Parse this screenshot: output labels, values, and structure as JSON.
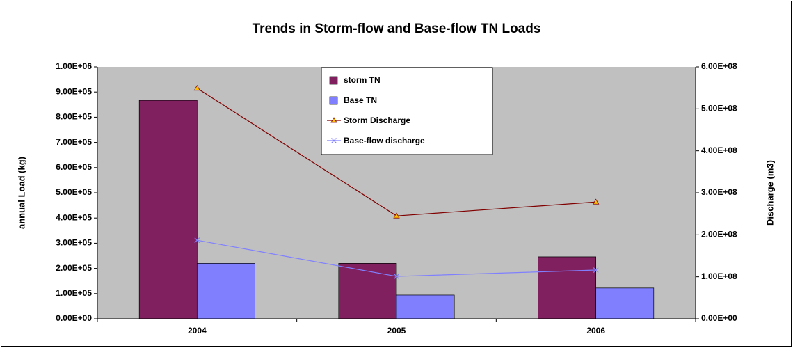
{
  "chart_data": {
    "type": "bar-line",
    "title": "Trends in Storm-flow and Base-flow TN Loads",
    "ylabel": "annual Load (kg)",
    "y2label": "Discharge (m3)",
    "categories": [
      "2004",
      "2005",
      "2006"
    ],
    "series": [
      {
        "name": "storm TN",
        "type": "bar",
        "color": "#80205f",
        "values": [
          867000,
          220000,
          246000
        ]
      },
      {
        "name": "Base TN",
        "type": "bar",
        "color": "#8080ff",
        "values": [
          220000,
          94000,
          122000
        ]
      },
      {
        "name": "Storm Discharge",
        "type": "line",
        "axis": "y2",
        "color": "#800000",
        "marker": "triangle",
        "marker_color": "#ffc000",
        "values": [
          549000000,
          245000000,
          278000000
        ]
      },
      {
        "name": "Base-flow discharge",
        "type": "line",
        "axis": "y2",
        "color": "#8080ff",
        "marker": "x",
        "values": [
          187000000,
          101000000,
          116000000
        ]
      }
    ],
    "ylim": [
      0,
      1000000
    ],
    "yticks": [
      {
        "value": 0,
        "label": "0.00E+00"
      },
      {
        "value": 100000,
        "label": "1.00E+05"
      },
      {
        "value": 200000,
        "label": "2.00E+05"
      },
      {
        "value": 300000,
        "label": "3.00E+05"
      },
      {
        "value": 400000,
        "label": "4.00E+05"
      },
      {
        "value": 500000,
        "label": "5.00E+05"
      },
      {
        "value": 600000,
        "label": "6.00E+05"
      },
      {
        "value": 700000,
        "label": "7.00E+05"
      },
      {
        "value": 800000,
        "label": "8.00E+05"
      },
      {
        "value": 900000,
        "label": "9.00E+05"
      },
      {
        "value": 1000000,
        "label": "1.00E+06"
      }
    ],
    "y2lim": [
      0,
      600000000
    ],
    "y2ticks": [
      {
        "value": 0,
        "label": "0.00E+00"
      },
      {
        "value": 100000000,
        "label": "1.00E+08"
      },
      {
        "value": 200000000,
        "label": "2.00E+08"
      },
      {
        "value": 300000000,
        "label": "3.00E+08"
      },
      {
        "value": 400000000,
        "label": "4.00E+08"
      },
      {
        "value": 500000000,
        "label": "5.00E+08"
      },
      {
        "value": 600000000,
        "label": "6.00E+08"
      }
    ],
    "legend": "top-center",
    "plot_background": "#c0c0c0"
  }
}
